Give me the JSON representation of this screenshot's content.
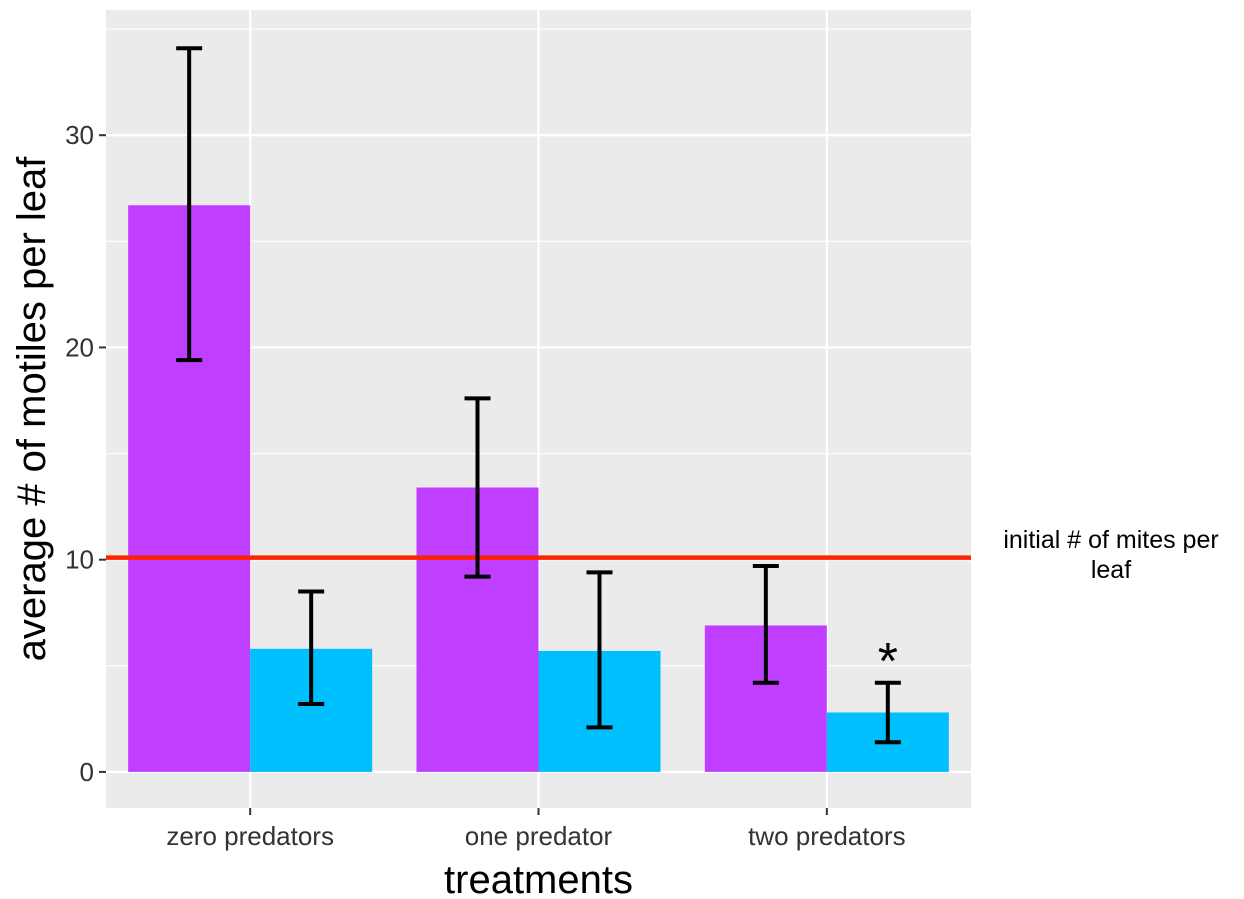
{
  "chart_data": {
    "type": "bar",
    "categories": [
      "zero predators",
      "one predator",
      "two predators"
    ],
    "series": [
      {
        "color": "#bf3eff",
        "values": [
          26.7,
          13.4,
          6.9
        ],
        "err_low": [
          19.4,
          9.2,
          4.2
        ],
        "err_high": [
          34.1,
          17.6,
          9.7
        ]
      },
      {
        "color": "#00bfff",
        "values": [
          5.8,
          5.7,
          2.8
        ],
        "err_low": [
          3.2,
          2.1,
          1.4
        ],
        "err_high": [
          8.5,
          9.4,
          4.2
        ]
      }
    ],
    "yticks": [
      "0",
      "10",
      "20",
      "30"
    ],
    "ylim": [
      -1.7,
      35.9
    ],
    "xlabel": "treatments",
    "ylabel": "average # of motiles per leaf",
    "grid": true,
    "background": "#ebebeb",
    "reference_line": {
      "value": 10.1,
      "color": "#ff2200",
      "label": "initial # of mites per leaf"
    },
    "annotations": [
      {
        "text": "*",
        "category": "two predators",
        "series_index": 1
      }
    ]
  }
}
